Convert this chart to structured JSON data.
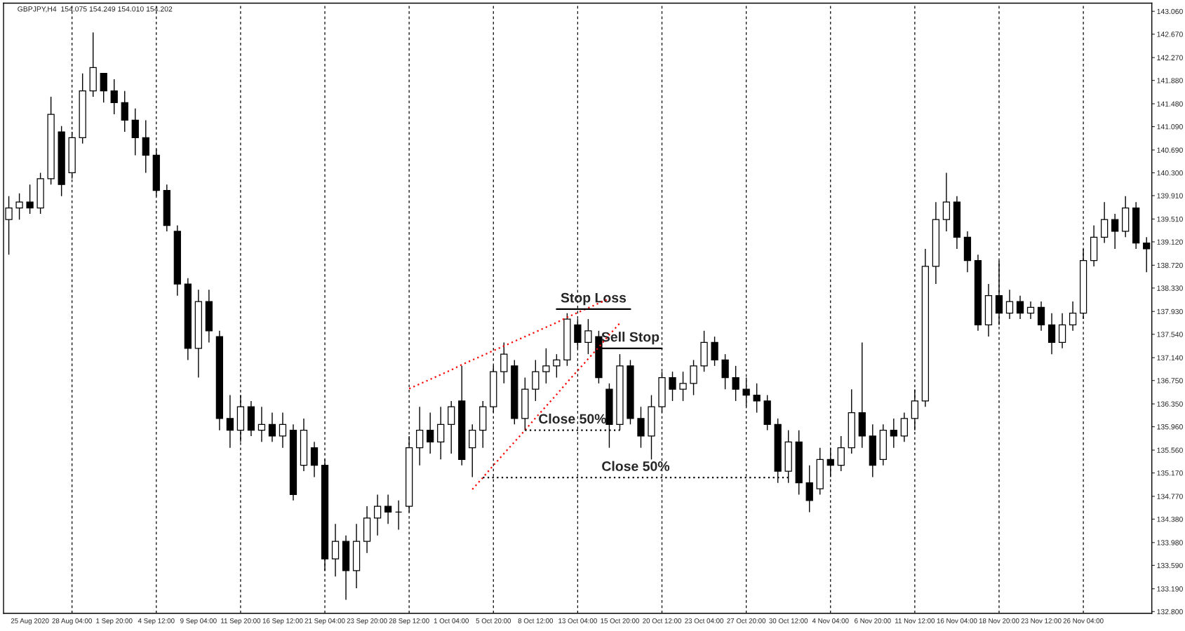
{
  "chart_data": {
    "type": "candlestick",
    "title": "GBPJPY,H4  154.075 154.249 154.010 154.202",
    "categories": [
      null,
      null,
      "25 Aug 2020",
      null,
      null,
      null,
      "28 Aug 04:00",
      null,
      null,
      null,
      "1 Sep 20:00",
      null,
      null,
      null,
      "4 Sep 12:00",
      null,
      null,
      null,
      "9 Sep 04:00",
      null,
      null,
      null,
      "11 Sep 20:00",
      null,
      null,
      null,
      "16 Sep 12:00",
      null,
      null,
      null,
      "21 Sep 04:00",
      null,
      null,
      null,
      "23 Sep 20:00",
      null,
      null,
      null,
      "28 Sep 12:00",
      null,
      null,
      null,
      "1 Oct 04:00",
      null,
      null,
      null,
      "5 Oct 20:00",
      null,
      null,
      null,
      "8 Oct 12:00",
      null,
      null,
      null,
      "13 Oct 04:00",
      null,
      null,
      null,
      "15 Oct 20:00",
      null,
      null,
      null,
      "20 Oct 12:00",
      null,
      null,
      null,
      "23 Oct 04:00",
      null,
      null,
      null,
      "27 Oct 20:00",
      null,
      null,
      null,
      "30 Oct 12:00",
      null,
      null,
      null,
      "4 Nov 04:00",
      null,
      null,
      null,
      "6 Nov 20:00",
      null,
      null,
      null,
      "11 Nov 12:00",
      null,
      null,
      null,
      "16 Nov 04:00",
      null,
      null,
      null,
      "18 Nov 20:00",
      null,
      null,
      null,
      "23 Nov 12:00",
      null,
      null,
      null,
      "26 Nov 04:00",
      null,
      null,
      null,
      null,
      null,
      null
    ],
    "ylim": [
      132.77,
      143.2
    ],
    "yticks": [
      {
        "value": 143.06,
        "label": "143.060"
      },
      {
        "value": 142.67,
        "label": "142.670"
      },
      {
        "value": 142.27,
        "label": "142.270"
      },
      {
        "value": 141.88,
        "label": "141.880"
      },
      {
        "value": 141.48,
        "label": "141.480"
      },
      {
        "value": 141.09,
        "label": "141.090"
      },
      {
        "value": 140.69,
        "label": "140.690"
      },
      {
        "value": 140.3,
        "label": "140.300"
      },
      {
        "value": 139.91,
        "label": "139.910"
      },
      {
        "value": 139.51,
        "label": "139.510"
      },
      {
        "value": 139.12,
        "label": "139.120"
      },
      {
        "value": 138.72,
        "label": "138.720"
      },
      {
        "value": 138.33,
        "label": "138.330"
      },
      {
        "value": 137.93,
        "label": "137.930"
      },
      {
        "value": 137.54,
        "label": "137.540"
      },
      {
        "value": 137.14,
        "label": "137.140"
      },
      {
        "value": 136.75,
        "label": "136.750"
      },
      {
        "value": 136.35,
        "label": "136.350"
      },
      {
        "value": 135.96,
        "label": "135.960"
      },
      {
        "value": 135.56,
        "label": "135.560"
      },
      {
        "value": 135.17,
        "label": "135.170"
      },
      {
        "value": 134.77,
        "label": "134.770"
      },
      {
        "value": 134.38,
        "label": "134.380"
      },
      {
        "value": 133.98,
        "label": "133.980"
      },
      {
        "value": 133.59,
        "label": "133.590"
      },
      {
        "value": 133.19,
        "label": "133.190"
      },
      {
        "value": 132.8,
        "label": "132.800"
      }
    ],
    "ref_lines": [
      {
        "axis": "x",
        "value": "28 Aug 04:00",
        "color": "#000000",
        "line_style": "dashed"
      },
      {
        "axis": "x",
        "value": "4 Sep 12:00",
        "color": "#000000",
        "line_style": "dashed"
      },
      {
        "axis": "x",
        "value": "11 Sep 20:00",
        "color": "#000000",
        "line_style": "dashed"
      },
      {
        "axis": "x",
        "value": "21 Sep 04:00",
        "color": "#000000",
        "line_style": "dashed"
      },
      {
        "axis": "x",
        "value": "28 Sep 12:00",
        "color": "#000000",
        "line_style": "dashed"
      },
      {
        "axis": "x",
        "value": "5 Oct 20:00",
        "color": "#000000",
        "line_style": "dashed"
      },
      {
        "axis": "x",
        "value": "13 Oct 04:00",
        "color": "#000000",
        "line_style": "dashed"
      },
      {
        "axis": "x",
        "value": "20 Oct 12:00",
        "color": "#000000",
        "line_style": "dashed"
      },
      {
        "axis": "x",
        "value": "27 Oct 20:00",
        "color": "#000000",
        "line_style": "dashed"
      },
      {
        "axis": "x",
        "value": "4 Nov 04:00",
        "color": "#000000",
        "line_style": "dashed"
      },
      {
        "axis": "x",
        "value": "11 Nov 12:00",
        "color": "#000000",
        "line_style": "dashed"
      },
      {
        "axis": "x",
        "value": "18 Nov 20:00",
        "color": "#000000",
        "line_style": "dashed"
      },
      {
        "axis": "x",
        "value": "26 Nov 04:00",
        "color": "#000000",
        "line_style": "dashed"
      }
    ],
    "series": [
      {
        "color": "#000000",
        "ohlc": [
          [
            139.5,
            139.9,
            138.9,
            139.7
          ],
          [
            139.7,
            139.95,
            139.5,
            139.8
          ],
          [
            139.8,
            140.1,
            139.6,
            139.7
          ],
          [
            139.7,
            140.3,
            139.6,
            140.2
          ],
          [
            140.2,
            141.6,
            140.1,
            141.3
          ],
          [
            141.0,
            141.1,
            139.9,
            140.1
          ],
          [
            140.3,
            141.0,
            140.2,
            140.9
          ],
          [
            140.9,
            142.0,
            140.8,
            141.7
          ],
          [
            141.7,
            142.7,
            141.6,
            142.1
          ],
          [
            142.0,
            142.0,
            141.5,
            141.7
          ],
          [
            141.7,
            141.9,
            141.3,
            141.5
          ],
          [
            141.5,
            141.7,
            141.0,
            141.2
          ],
          [
            141.2,
            141.4,
            140.6,
            140.9
          ],
          [
            140.9,
            141.2,
            140.3,
            140.6
          ],
          [
            140.6,
            140.7,
            139.9,
            140.0
          ],
          [
            140.0,
            140.1,
            139.3,
            139.4
          ],
          [
            139.3,
            139.4,
            138.2,
            138.4
          ],
          [
            138.4,
            138.5,
            137.1,
            137.3
          ],
          [
            137.3,
            138.3,
            136.8,
            138.1
          ],
          [
            138.1,
            138.3,
            137.4,
            137.6
          ],
          [
            137.5,
            137.6,
            135.9,
            136.1
          ],
          [
            136.1,
            136.5,
            135.6,
            135.9
          ],
          [
            135.9,
            136.5,
            135.7,
            136.3
          ],
          [
            136.3,
            136.4,
            135.8,
            135.9
          ],
          [
            135.9,
            136.3,
            135.7,
            136.0
          ],
          [
            136.0,
            136.2,
            135.7,
            135.8
          ],
          [
            135.8,
            136.2,
            135.6,
            136.0
          ],
          [
            135.9,
            136.0,
            134.7,
            134.8
          ],
          [
            135.3,
            136.1,
            135.2,
            135.9
          ],
          [
            135.6,
            135.7,
            135.1,
            135.3
          ],
          [
            135.3,
            135.4,
            133.5,
            133.7
          ],
          [
            133.7,
            134.3,
            133.4,
            134.0
          ],
          [
            134.0,
            134.1,
            133.0,
            133.5
          ],
          [
            133.5,
            134.3,
            133.2,
            134.0
          ],
          [
            134.0,
            134.6,
            133.8,
            134.4
          ],
          [
            134.4,
            134.8,
            134.1,
            134.6
          ],
          [
            134.6,
            134.8,
            134.3,
            134.5
          ],
          [
            134.5,
            134.7,
            134.2,
            134.5
          ],
          [
            134.6,
            135.8,
            134.5,
            135.6
          ],
          [
            135.6,
            136.3,
            135.3,
            135.9
          ],
          [
            135.9,
            136.2,
            135.5,
            135.7
          ],
          [
            135.7,
            136.3,
            135.4,
            136.0
          ],
          [
            136.0,
            136.4,
            135.5,
            136.3
          ],
          [
            136.4,
            137.0,
            135.3,
            135.4
          ],
          [
            135.6,
            136.0,
            135.1,
            135.9
          ],
          [
            135.9,
            136.4,
            135.6,
            136.3
          ],
          [
            136.3,
            137.0,
            136.2,
            136.9
          ],
          [
            136.9,
            137.4,
            136.7,
            137.2
          ],
          [
            137.0,
            137.1,
            136.0,
            136.1
          ],
          [
            136.1,
            136.8,
            135.9,
            136.6
          ],
          [
            136.6,
            137.1,
            136.4,
            136.9
          ],
          [
            136.9,
            137.3,
            136.7,
            137.0
          ],
          [
            137.0,
            137.2,
            136.8,
            137.1
          ],
          [
            137.1,
            137.9,
            137.0,
            137.8
          ],
          [
            137.7,
            137.8,
            137.3,
            137.4
          ],
          [
            137.4,
            137.8,
            137.2,
            137.6
          ],
          [
            137.5,
            137.6,
            136.7,
            136.8
          ],
          [
            136.6,
            136.7,
            135.6,
            136.0
          ],
          [
            136.0,
            137.2,
            135.9,
            137.0
          ],
          [
            137.0,
            137.1,
            136.0,
            136.1
          ],
          [
            136.1,
            136.3,
            135.6,
            135.8
          ],
          [
            135.8,
            136.5,
            135.4,
            136.3
          ],
          [
            136.3,
            136.9,
            136.2,
            136.8
          ],
          [
            136.8,
            136.9,
            136.4,
            136.6
          ],
          [
            136.6,
            136.9,
            136.4,
            136.7
          ],
          [
            136.7,
            137.1,
            136.5,
            137.0
          ],
          [
            137.0,
            137.6,
            136.9,
            137.4
          ],
          [
            137.4,
            137.5,
            137.0,
            137.1
          ],
          [
            137.1,
            137.2,
            136.6,
            136.8
          ],
          [
            136.8,
            137.0,
            136.4,
            136.6
          ],
          [
            136.6,
            136.8,
            136.3,
            136.5
          ],
          [
            136.5,
            136.7,
            136.2,
            136.4
          ],
          [
            136.4,
            136.5,
            135.9,
            136.0
          ],
          [
            136.0,
            136.1,
            135.0,
            135.2
          ],
          [
            135.2,
            135.9,
            135.0,
            135.7
          ],
          [
            135.7,
            135.9,
            134.8,
            135.0
          ],
          [
            135.0,
            135.3,
            134.5,
            134.7
          ],
          [
            134.9,
            135.6,
            134.8,
            135.4
          ],
          [
            135.4,
            135.6,
            135.1,
            135.3
          ],
          [
            135.3,
            135.8,
            135.2,
            135.6
          ],
          [
            135.6,
            136.6,
            135.5,
            136.2
          ],
          [
            136.2,
            137.4,
            135.6,
            135.8
          ],
          [
            135.8,
            136.0,
            135.1,
            135.3
          ],
          [
            135.4,
            136.0,
            135.3,
            135.9
          ],
          [
            135.9,
            136.1,
            135.6,
            135.8
          ],
          [
            135.8,
            136.2,
            135.7,
            136.1
          ],
          [
            136.1,
            136.6,
            135.9,
            136.4
          ],
          [
            136.4,
            139.0,
            136.3,
            138.7
          ],
          [
            138.7,
            139.8,
            138.4,
            139.5
          ],
          [
            139.5,
            140.3,
            139.3,
            139.8
          ],
          [
            139.8,
            139.9,
            139.0,
            139.2
          ],
          [
            139.2,
            139.3,
            138.6,
            138.8
          ],
          [
            138.8,
            138.9,
            137.6,
            137.7
          ],
          [
            137.7,
            138.4,
            137.5,
            138.2
          ],
          [
            138.2,
            138.8,
            137.7,
            137.9
          ],
          [
            137.9,
            138.3,
            137.8,
            138.1
          ],
          [
            138.1,
            138.2,
            137.8,
            137.9
          ],
          [
            137.9,
            138.1,
            137.8,
            138.0
          ],
          [
            138.0,
            138.1,
            137.6,
            137.7
          ],
          [
            137.7,
            137.9,
            137.2,
            137.4
          ],
          [
            137.4,
            137.9,
            137.3,
            137.7
          ],
          [
            137.7,
            138.1,
            137.6,
            137.9
          ],
          [
            137.9,
            139.0,
            137.8,
            138.8
          ],
          [
            138.8,
            139.4,
            138.7,
            139.2
          ],
          [
            139.2,
            139.8,
            139.1,
            139.5
          ],
          [
            139.5,
            139.6,
            139.0,
            139.3
          ],
          [
            139.3,
            139.9,
            139.2,
            139.7
          ],
          [
            139.7,
            139.8,
            139.0,
            139.1
          ],
          [
            139.1,
            139.2,
            138.6,
            139.0
          ]
        ]
      },
      {
        "type": "line",
        "color": "#ff0000",
        "line_style": "dotted",
        "values": [
          null,
          null,
          null,
          null,
          null,
          null,
          null,
          null,
          null,
          null,
          null,
          null,
          null,
          null,
          null,
          null,
          null,
          null,
          null,
          null,
          null,
          null,
          null,
          null,
          null,
          null,
          null,
          null,
          null,
          null,
          null,
          null,
          null,
          null,
          null,
          null,
          null,
          null,
          136.61,
          136.69,
          136.77,
          136.85,
          136.93,
          137.02,
          137.1,
          137.18,
          137.26,
          137.34,
          137.42,
          137.5,
          137.58,
          137.66,
          137.74,
          137.83,
          137.91,
          137.99,
          138.07,
          138.15,
          null,
          null,
          null,
          null,
          null,
          null,
          null,
          null,
          null,
          null,
          null,
          null,
          null,
          null,
          null,
          null,
          null,
          null,
          null,
          null,
          null,
          null,
          null,
          null,
          null,
          null,
          null,
          null,
          null,
          null,
          null,
          null,
          null,
          null,
          null,
          null,
          null,
          null,
          null,
          null,
          null,
          null,
          null,
          null,
          null,
          null,
          null,
          null,
          null,
          null,
          null
        ]
      },
      {
        "type": "line",
        "color": "#ff0000",
        "line_style": "dotted",
        "values": [
          null,
          null,
          null,
          null,
          null,
          null,
          null,
          null,
          null,
          null,
          null,
          null,
          null,
          null,
          null,
          null,
          null,
          null,
          null,
          null,
          null,
          null,
          null,
          null,
          null,
          null,
          null,
          null,
          null,
          null,
          null,
          null,
          null,
          null,
          null,
          null,
          null,
          null,
          null,
          null,
          null,
          null,
          null,
          null,
          134.89,
          135.09,
          135.3,
          135.5,
          135.7,
          135.9,
          136.11,
          136.31,
          136.51,
          136.72,
          136.92,
          137.12,
          137.32,
          137.53,
          137.73,
          null,
          null,
          null,
          null,
          null,
          null,
          null,
          null,
          null,
          null,
          null,
          null,
          null,
          null,
          null,
          null,
          null,
          null,
          null,
          null,
          null,
          null,
          null,
          null,
          null,
          null,
          null,
          null,
          null,
          null,
          null,
          null,
          null,
          null,
          null,
          null,
          null,
          null,
          null,
          null,
          null,
          null,
          null,
          null,
          null,
          null,
          null,
          null,
          null,
          null
        ]
      },
      {
        "type": "line",
        "name": "Stop Loss",
        "color": "#000000",
        "line_style": "solid",
        "values": [
          null,
          null,
          null,
          null,
          null,
          null,
          null,
          null,
          null,
          null,
          null,
          null,
          null,
          null,
          null,
          null,
          null,
          null,
          null,
          null,
          null,
          null,
          null,
          null,
          null,
          null,
          null,
          null,
          null,
          null,
          null,
          null,
          null,
          null,
          null,
          null,
          null,
          null,
          null,
          null,
          null,
          null,
          null,
          null,
          null,
          null,
          null,
          null,
          null,
          null,
          null,
          null,
          137.97,
          137.97,
          137.97,
          137.97,
          137.97,
          137.97,
          137.97,
          137.97,
          null,
          null,
          null,
          null,
          null,
          null,
          null,
          null,
          null,
          null,
          null,
          null,
          null,
          null,
          null,
          null,
          null,
          null,
          null,
          null,
          null,
          null,
          null,
          null,
          null,
          null,
          null,
          null,
          null,
          null,
          null,
          null,
          null,
          null,
          null,
          null,
          null,
          null,
          null,
          null,
          null,
          null,
          null,
          null,
          null,
          null,
          null,
          null,
          null
        ]
      },
      {
        "type": "line",
        "name": "Sell Stop",
        "color": "#000000",
        "line_style": "solid",
        "values": [
          null,
          null,
          null,
          null,
          null,
          null,
          null,
          null,
          null,
          null,
          null,
          null,
          null,
          null,
          null,
          null,
          null,
          null,
          null,
          null,
          null,
          null,
          null,
          null,
          null,
          null,
          null,
          null,
          null,
          null,
          null,
          null,
          null,
          null,
          null,
          null,
          null,
          null,
          null,
          null,
          null,
          null,
          null,
          null,
          null,
          null,
          null,
          null,
          null,
          null,
          null,
          null,
          null,
          null,
          null,
          null,
          137.3,
          137.3,
          137.3,
          137.3,
          137.3,
          137.3,
          137.3,
          null,
          null,
          null,
          null,
          null,
          null,
          null,
          null,
          null,
          null,
          null,
          null,
          null,
          null,
          null,
          null,
          null,
          null,
          null,
          null,
          null,
          null,
          null,
          null,
          null,
          null,
          null,
          null,
          null,
          null,
          null,
          null,
          null,
          null,
          null,
          null,
          null,
          null,
          null,
          null,
          null,
          null,
          null,
          null,
          null,
          null
        ]
      },
      {
        "type": "line",
        "name": "Close 50%",
        "color": "#000000",
        "line_style": "dotted",
        "values": [
          null,
          null,
          null,
          null,
          null,
          null,
          null,
          null,
          null,
          null,
          null,
          null,
          null,
          null,
          null,
          null,
          null,
          null,
          null,
          null,
          null,
          null,
          null,
          null,
          null,
          null,
          null,
          null,
          null,
          null,
          null,
          null,
          null,
          null,
          null,
          null,
          null,
          null,
          null,
          null,
          null,
          null,
          null,
          null,
          null,
          null,
          null,
          null,
          null,
          135.9,
          135.9,
          135.9,
          135.9,
          135.9,
          135.9,
          135.9,
          135.9,
          135.9,
          135.9,
          null,
          null,
          null,
          null,
          null,
          null,
          null,
          null,
          null,
          null,
          null,
          null,
          null,
          null,
          null,
          null,
          null,
          null,
          null,
          null,
          null,
          null,
          null,
          null,
          null,
          null,
          null,
          null,
          null,
          null,
          null,
          null,
          null,
          null,
          null,
          null,
          null,
          null,
          null,
          null,
          null,
          null,
          null,
          null,
          null,
          null,
          null,
          null,
          null,
          null
        ]
      },
      {
        "type": "line",
        "name": "Close 50%",
        "color": "#000000",
        "line_style": "dotted",
        "values": [
          null,
          null,
          null,
          null,
          null,
          null,
          null,
          null,
          null,
          null,
          null,
          null,
          null,
          null,
          null,
          null,
          null,
          null,
          null,
          null,
          null,
          null,
          null,
          null,
          null,
          null,
          null,
          null,
          null,
          null,
          null,
          null,
          null,
          null,
          null,
          null,
          null,
          null,
          null,
          null,
          null,
          null,
          null,
          null,
          null,
          135.09,
          135.09,
          135.09,
          135.09,
          135.09,
          135.09,
          135.09,
          135.09,
          135.09,
          135.09,
          135.09,
          135.09,
          135.09,
          135.09,
          135.09,
          135.09,
          135.09,
          135.09,
          135.09,
          135.09,
          135.09,
          135.09,
          135.09,
          135.09,
          135.09,
          135.09,
          135.09,
          135.09,
          135.09,
          135.09,
          null,
          null,
          null,
          null,
          null,
          null,
          null,
          null,
          null,
          null,
          null,
          null,
          null,
          null,
          null,
          null,
          null,
          null,
          null,
          null,
          null,
          null,
          null,
          null,
          null,
          null,
          null,
          null,
          null,
          null,
          null,
          null,
          null,
          null
        ]
      }
    ]
  }
}
